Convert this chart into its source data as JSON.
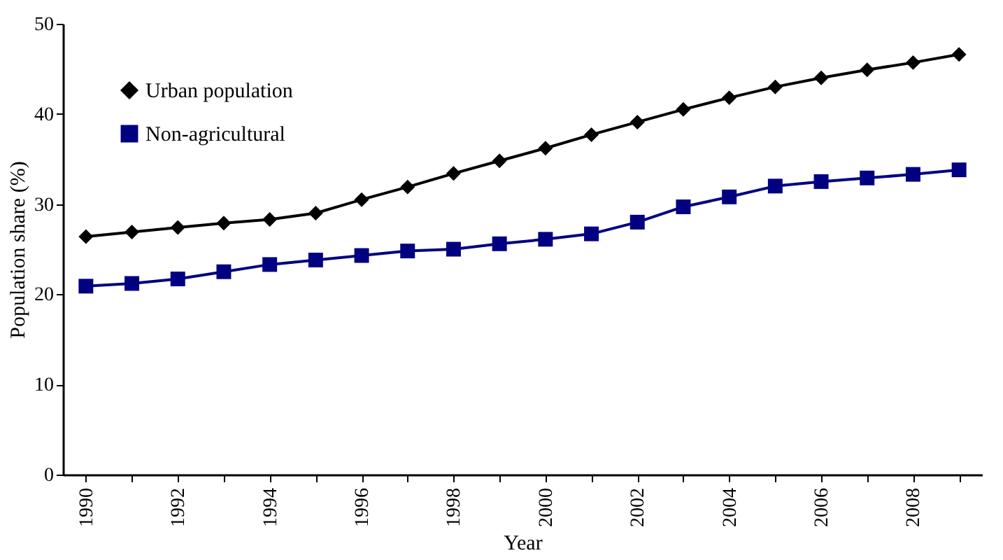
{
  "chart_data": {
    "type": "line",
    "xlabel": "Year",
    "ylabel": "Population share (%)",
    "categories": [
      "1990",
      null,
      "1992",
      null,
      "1994",
      null,
      "1996",
      null,
      "1998",
      null,
      "2000",
      null,
      "2002",
      null,
      "2004",
      null,
      "2006",
      null,
      "2008",
      null
    ],
    "series": [
      {
        "name": "Urban population",
        "color": "#000000",
        "marker": "diamond",
        "values": [
          26.4,
          26.9,
          27.4,
          27.9,
          28.3,
          29.0,
          30.5,
          31.9,
          33.4,
          34.8,
          36.2,
          37.7,
          39.1,
          40.5,
          41.8,
          43.0,
          44.0,
          44.9,
          45.7,
          46.6
        ]
      },
      {
        "name": "Non-agricultural",
        "color": "#000080",
        "marker": "square",
        "values": [
          20.9,
          21.2,
          21.7,
          22.5,
          23.3,
          23.8,
          24.3,
          24.8,
          25.0,
          25.6,
          26.1,
          26.7,
          28.0,
          29.7,
          30.8,
          32.0,
          32.5,
          32.9,
          33.3,
          33.8
        ]
      }
    ],
    "ylim": [
      0,
      50
    ],
    "yticks": [
      0,
      10,
      20,
      30,
      40,
      50
    ],
    "grid": false,
    "legend": "top left",
    "line_style": "solid"
  }
}
